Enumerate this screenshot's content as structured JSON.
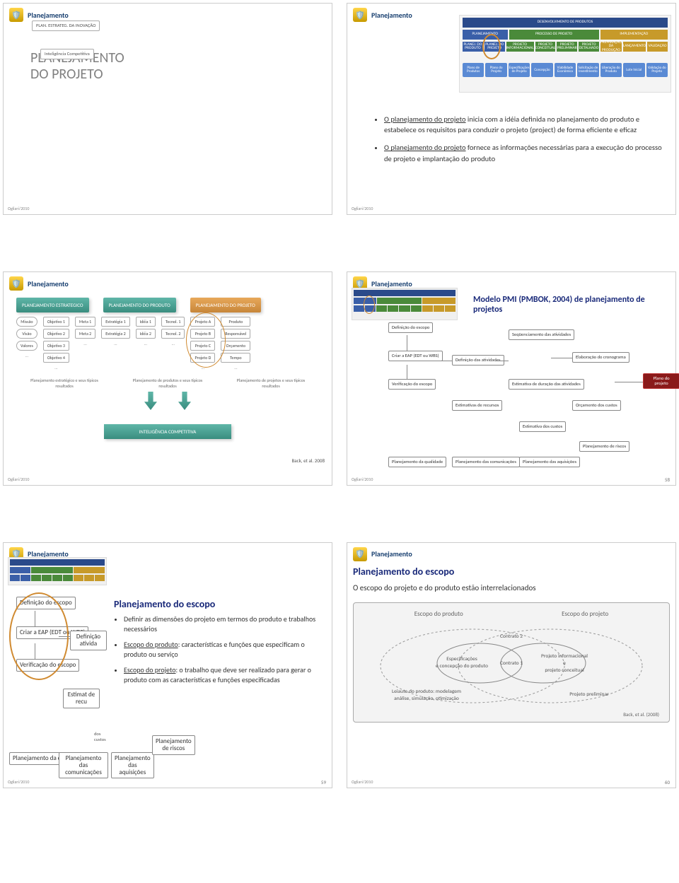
{
  "header_label": "Planejamento",
  "footer_stamp": "Ogliari/2010",
  "colors": {
    "header_text": "#153d6e",
    "pmi_title": "#1a2a7a",
    "big_title": "#808080",
    "red_box_bg": "#8a1a1a"
  },
  "slide1": {
    "big_title_line1": "PLANEJAMENTO",
    "big_title_line2": "DO PROJETO",
    "box_plan": "PLAN. ESTRATEG. DA INOVAÇÃO",
    "box_intel": "Inteligência Competitiva"
  },
  "slide2": {
    "bullet1_u": "O planejamento do projeto",
    "bullet1_rest": " inicia com a idéia definida no planejamento do produto e estabelece os requisitos para conduzir o projeto (project) de forma eficiente e eficaz",
    "bullet2_u": "O planejamento do projeto",
    "bullet2_rest": " fornece as informações necessárias para a execução do processo de projeto e implantação do produto",
    "top_bar": "DESENVOLVIMENTO DE PRODUTOS",
    "row2": [
      "PLANEJAMENTO",
      "PROCESSO DE PROJETO",
      "IMPLEMENTAÇÃO"
    ],
    "row3": [
      "PLANEJ. DO PRODUTO",
      "PLANEJ. DO PROJETO",
      "PROJETO INFORMACIONAL",
      "PROJETO CONCEITUAL",
      "PROJETO PRELIMINAR",
      "PROJETO DETALHADO",
      "PREPARAÇÃO DA PRODUÇÃO",
      "LANÇAMENTO",
      "VALIDAÇÃO"
    ],
    "row3_colors": [
      "#3a5fa8",
      "#3a5fa8",
      "#4a8a3a",
      "#4a8a3a",
      "#4a8a3a",
      "#4a8a3a",
      "#c79a2a",
      "#c79a2a",
      "#c79a2a"
    ],
    "row4": [
      "Plano de Produtos",
      "Plano do Projeto",
      "Especificações de Projeto",
      "Concepção",
      "Viabilidade Econômica",
      "Solicitação de Investimento",
      "Liberação do Produto",
      "Lote Inicial",
      "Validação do Projeto"
    ]
  },
  "slide3": {
    "box_a": "PLANEJAMENTO ESTRATEGICO",
    "box_b": "PLANEJAMENTO DO PRODUTO",
    "box_c": "PLANEJAMENTO DO PROJETO",
    "col_mvv": [
      "Missão",
      "Visão",
      "Valores"
    ],
    "col_obj": [
      "Objetivo 1",
      "Objetivo 2",
      "Objetivo 3",
      "Objetivo 4"
    ],
    "col_meta": [
      "Meta 1",
      "Meta 2"
    ],
    "col_estr": [
      "Estratégia 1",
      "Estratégia 2"
    ],
    "col_ideia": [
      "Idéia 1",
      "Idéia 2"
    ],
    "col_tec": [
      "Tecnol. 1",
      "Tecnol. 2"
    ],
    "col_proj": [
      "Projeto A",
      "Projeto B",
      "Projeto C",
      "Projeto D"
    ],
    "col_res": [
      "Produto",
      "Responsável",
      "Orçamento",
      "Tempo"
    ],
    "cap1": "Planejamento estratégico e seus típicos resultados",
    "cap2": "Planejamento de produtos e seus típicos resultados",
    "cap3": "Planejamento de projetos e seus típicos resultados",
    "comp_intel": "INTELIGÊNCIA COMPETITIVA",
    "cite": "Back, et al. 2008"
  },
  "slide4": {
    "title": "Modelo PMI (PMBOK, 2004) de planejamento de projetos",
    "nodes": {
      "def_escopo": "Definição do escopo",
      "criar_eap": "Criar a EAP (EDT ou WBS)",
      "verif_escopo": "Verificação do escopo",
      "def_ativ": "Definição das atividades",
      "seq_ativ": "Seqüenciamento das atividades",
      "elab_crono": "Elaboração do cronograma",
      "est_dur": "Estimativa de duração das atividades",
      "est_rec": "Estimativas de recursos",
      "est_custo": "Estimativa dos custos",
      "orc_custo": "Orçamento dos custos",
      "plan_qual": "Planejamento da qualidade",
      "plan_com": "Planejamento das comunicações",
      "plan_aquis": "Planejamento das aquisições",
      "plan_risco": "Planejamento de riscos",
      "plano_proj": "Plano do projeto"
    },
    "num": "58"
  },
  "slide5": {
    "title": "Planejamento do escopo",
    "bullet1": "Definir as dimensões do projeto em termos do produto e trabalhos necessários",
    "bullet2_u": "Escopo do produto",
    "bullet2_rest": ": características e funções que especificam o produto ou serviço",
    "bullet3_u": "Escopo do projeto",
    "bullet3_rest": ": o trabalho que deve ser realizado para gerar o produto com as características e funções especificadas",
    "nodes": {
      "def_escopo": "Definição do escopo",
      "criar_eap": "Criar a EAP (EDT ou WBS)",
      "verif_escopo": "Verificação do escopo",
      "def_ativ_trunc": "Definição ativida",
      "est_rec_trunc": "Estimat de recu",
      "dos_custos": "dos custos",
      "plan_qual": "Planejamento da qualidade",
      "plan_com": "Planejamento das comunicações",
      "plan_aquis": "Planejamento das aquisições",
      "plan_risco": "Planejamento de riscos"
    },
    "num": "59"
  },
  "slide6": {
    "title": "Planejamento do escopo",
    "sub": "O escopo do projeto e do produto estão interrelacionados",
    "col_left": "Escopo do produto",
    "col_right": "Escopo do projeto",
    "inner_left": "Especificações e concepção do produto",
    "outer_left": "Leiaute do produto: modelagem, análise, simulação, otimização",
    "contrato1": "Contrato 1",
    "contrato2": "Contrato 2",
    "inner_right": "Projeto informacional e projeto conceitual",
    "outer_right": "Projeto preliminar",
    "cite": "Back, et al. (2008)",
    "num": "60"
  }
}
